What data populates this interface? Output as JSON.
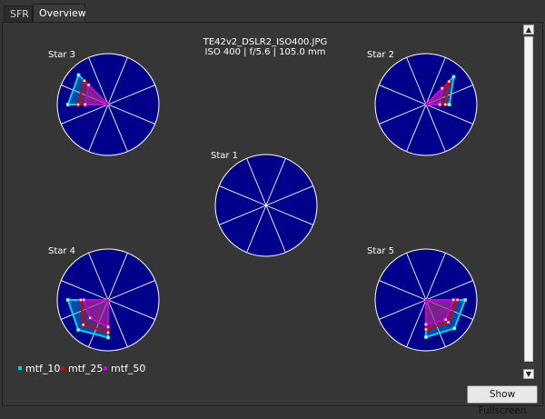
{
  "tabs": [
    {
      "label": "SFR",
      "active": false
    },
    {
      "label": "Overview",
      "active": true
    }
  ],
  "header": {
    "filename": "TE42v2_DSLR2_ISO400.JPG",
    "exposure": "ISO 400 | f/5.6 | 105.0 mm"
  },
  "colors": {
    "background": "#353535",
    "star_fill": "#00008b",
    "mtf_10": "#00d4e8",
    "mtf_25": "#e00000",
    "mtf_50": "#d000d0"
  },
  "legend": [
    {
      "label": "mtf_10",
      "key": "mtf_10"
    },
    {
      "label": "mtf_25",
      "key": "mtf_25"
    },
    {
      "label": "mtf_50",
      "key": "mtf_50"
    }
  ],
  "fullscreen_button": "Show Fullscreen",
  "chart_data": {
    "type": "radar",
    "axes_count": 8,
    "radial_range": [
      0,
      1
    ],
    "stars": [
      {
        "name": "Star 1",
        "series": {}
      },
      {
        "name": "Star 2",
        "series": {
          "mtf_10": [
            0.46,
            0.77,
            0,
            0,
            0,
            0,
            0,
            0
          ],
          "mtf_25": [
            0.38,
            0.64,
            0,
            0,
            0,
            0,
            0,
            0
          ],
          "mtf_50": [
            0.27,
            0.45,
            0,
            0,
            0,
            0,
            0,
            0
          ]
        }
      },
      {
        "name": "Star 3",
        "series": {
          "mtf_10": [
            0,
            0,
            0,
            0.82,
            0.79,
            0,
            0,
            0
          ],
          "mtf_25": [
            0,
            0,
            0,
            0.66,
            0.59,
            0,
            0,
            0
          ],
          "mtf_50": [
            0,
            0,
            0,
            0.54,
            0.45,
            0,
            0,
            0
          ]
        }
      },
      {
        "name": "Star 4",
        "series": {
          "mtf_10": [
            0,
            0,
            0,
            0,
            0.79,
            0.83,
            0.74,
            0
          ],
          "mtf_25": [
            0,
            0,
            0,
            0,
            0.54,
            0.69,
            0.64,
            0
          ],
          "mtf_50": [
            0,
            0,
            0,
            0,
            0.48,
            0.5,
            0.53,
            0
          ]
        }
      },
      {
        "name": "Star 5",
        "series": {
          "mtf_10": [
            0.77,
            0,
            0,
            0,
            0,
            0,
            0.73,
            0.79
          ],
          "mtf_25": [
            0.62,
            0,
            0,
            0,
            0,
            0,
            0.58,
            0.62
          ],
          "mtf_50": [
            0.54,
            0,
            0,
            0,
            0,
            0,
            0.48,
            0.55
          ]
        }
      }
    ]
  }
}
